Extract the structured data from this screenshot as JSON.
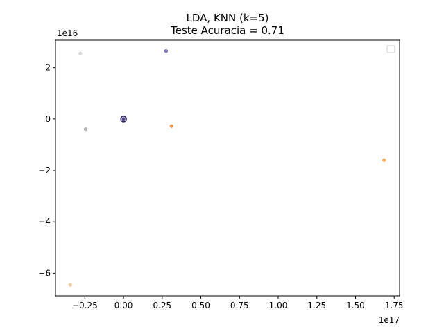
{
  "chart_data": {
    "type": "scatter",
    "title_line1": "LDA, KNN (k=5)",
    "title_line2": "Teste Acuracia  = 0.71",
    "x_scale_label": "1e17",
    "y_scale_label": "1e16",
    "xlim": [
      -0.44,
      1.785
    ],
    "ylim": [
      -6.88,
      3.07
    ],
    "x_ticks": [
      -0.25,
      0.0,
      0.25,
      0.5,
      0.75,
      1.0,
      1.25,
      1.5,
      1.75
    ],
    "x_tick_labels": [
      "−0.25",
      "0.00",
      "0.25",
      "0.50",
      "0.75",
      "1.00",
      "1.25",
      "1.50",
      "1.75"
    ],
    "y_ticks": [
      2,
      0,
      -2,
      -4,
      -6
    ],
    "y_tick_labels": [
      "2",
      "0",
      "−2",
      "−4",
      "−6"
    ],
    "grid": false,
    "legend": "top-right (empty)",
    "points": [
      {
        "x": -0.28,
        "y": 2.55,
        "color": "#cfcfcf"
      },
      {
        "x": 0.275,
        "y": 2.65,
        "color": "#6a5fb0"
      },
      {
        "x": -0.245,
        "y": -0.4,
        "color": "#a8a8a8"
      },
      {
        "x": 0.0,
        "y": 0.0,
        "color": "#2a1f5e"
      },
      {
        "x": 0.0,
        "y": 0.0,
        "color": "#3d3278"
      },
      {
        "x": 0.31,
        "y": -0.28,
        "color": "#ee8a2c"
      },
      {
        "x": 1.685,
        "y": -1.6,
        "color": "#f2a04a"
      },
      {
        "x": -0.345,
        "y": -6.45,
        "color": "#f4c690"
      }
    ]
  }
}
